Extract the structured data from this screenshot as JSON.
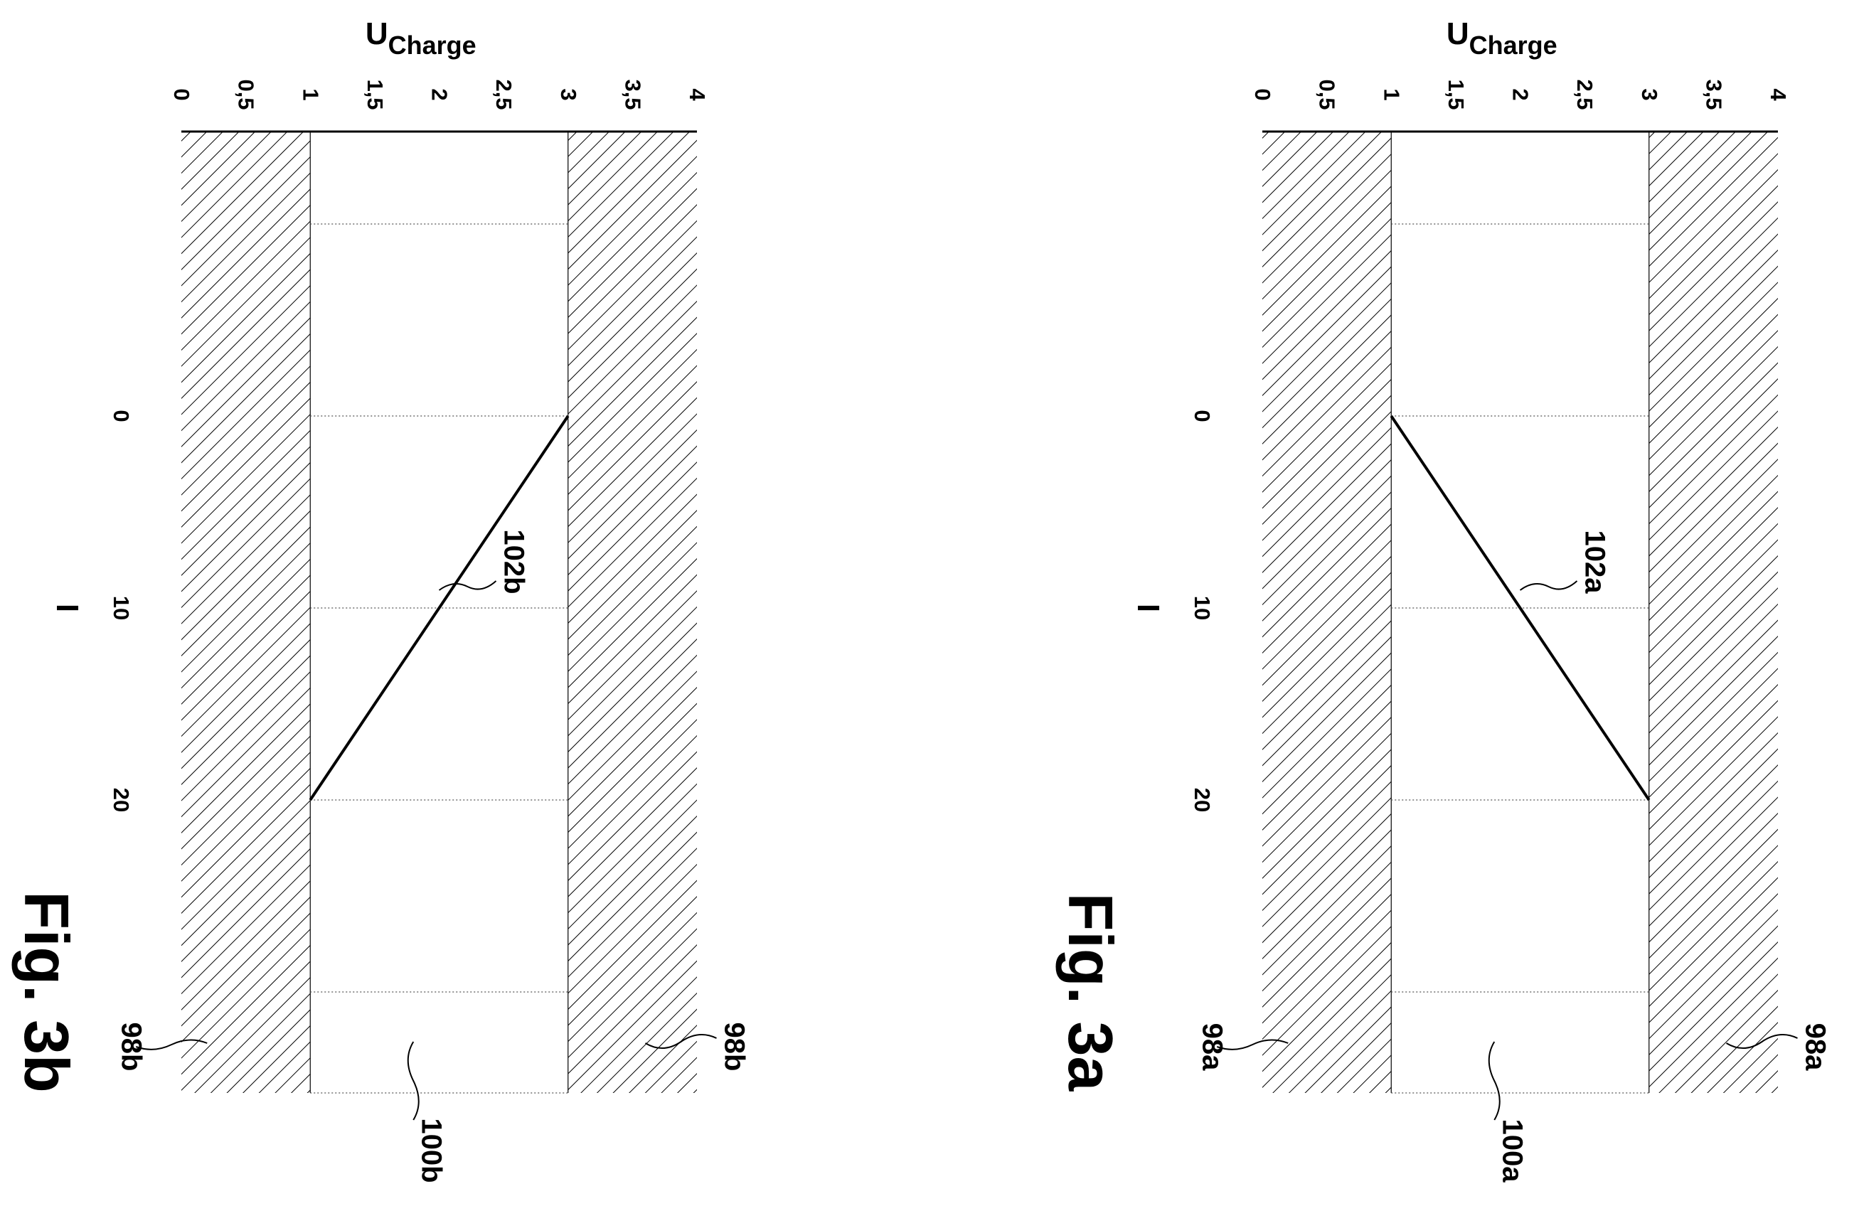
{
  "chart_data": [
    {
      "type": "line",
      "figure_label": "Fig. 3a",
      "x_axis_label": "I",
      "y_axis_label_main": "U",
      "y_axis_label_sub": "Charge",
      "x_ticks": [
        "0",
        "10",
        "20"
      ],
      "x_tick_values": [
        0,
        10,
        20
      ],
      "y_ticks": [
        "0",
        "0,5",
        "1",
        "1,5",
        "2",
        "2,5",
        "3",
        "3,5",
        "4"
      ],
      "y_tick_values": [
        0,
        0.5,
        1,
        1.5,
        2,
        2.5,
        3,
        3.5,
        4
      ],
      "xlim": [
        -15,
        35
      ],
      "ylim": [
        0,
        4
      ],
      "gridlines_x": [
        -10,
        0,
        10,
        20,
        30
      ],
      "regions": [
        {
          "y_range": [
            0,
            1
          ],
          "hatched": true
        },
        {
          "y_range": [
            1,
            3
          ],
          "hatched": false
        },
        {
          "y_range": [
            3,
            4
          ],
          "hatched": true
        }
      ],
      "series": [
        {
          "x": [
            0,
            20
          ],
          "y": [
            1,
            3
          ]
        }
      ],
      "annotations": {
        "line_ref": "102a",
        "upper_hatch_ref": "98a",
        "lower_hatch_ref": "98a",
        "band_ref": "100a"
      }
    },
    {
      "type": "line",
      "figure_label": "Fig. 3b",
      "x_axis_label": "I",
      "y_axis_label_main": "U",
      "y_axis_label_sub": "Charge",
      "x_ticks": [
        "0",
        "10",
        "20"
      ],
      "x_tick_values": [
        0,
        10,
        20
      ],
      "y_ticks": [
        "0",
        "0,5",
        "1",
        "1,5",
        "2",
        "2,5",
        "3",
        "3,5",
        "4"
      ],
      "y_tick_values": [
        0,
        0.5,
        1,
        1.5,
        2,
        2.5,
        3,
        3.5,
        4
      ],
      "xlim": [
        -15,
        35
      ],
      "ylim": [
        0,
        4
      ],
      "gridlines_x": [
        -10,
        0,
        10,
        20,
        30
      ],
      "regions": [
        {
          "y_range": [
            0,
            1
          ],
          "hatched": true
        },
        {
          "y_range": [
            1,
            3
          ],
          "hatched": false
        },
        {
          "y_range": [
            3,
            4
          ],
          "hatched": true
        }
      ],
      "series": [
        {
          "x": [
            0,
            20
          ],
          "y": [
            3,
            1
          ]
        }
      ],
      "annotations": {
        "line_ref": "102b",
        "upper_hatch_ref": "98b",
        "lower_hatch_ref": "98b",
        "band_ref": "100b"
      }
    }
  ]
}
